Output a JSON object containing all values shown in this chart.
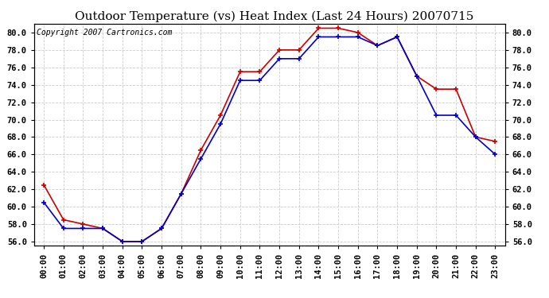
{
  "title": "Outdoor Temperature (vs) Heat Index (Last 24 Hours) 20070715",
  "copyright_text": "Copyright 2007 Cartronics.com",
  "hours": [
    "00:00",
    "01:00",
    "02:00",
    "03:00",
    "04:00",
    "05:00",
    "06:00",
    "07:00",
    "08:00",
    "09:00",
    "10:00",
    "11:00",
    "12:00",
    "13:00",
    "14:00",
    "15:00",
    "16:00",
    "17:00",
    "18:00",
    "19:00",
    "20:00",
    "21:00",
    "22:00",
    "23:00"
  ],
  "temp_blue": [
    60.5,
    57.5,
    57.5,
    57.5,
    56.0,
    56.0,
    57.5,
    61.5,
    65.5,
    69.5,
    74.5,
    74.5,
    77.0,
    77.0,
    79.5,
    79.5,
    79.5,
    78.5,
    79.5,
    75.0,
    70.5,
    70.5,
    68.0,
    66.0
  ],
  "heat_red": [
    62.5,
    58.5,
    58.0,
    57.5,
    56.0,
    56.0,
    57.5,
    61.5,
    66.5,
    70.5,
    75.5,
    75.5,
    78.0,
    78.0,
    80.5,
    80.5,
    80.0,
    78.5,
    79.5,
    75.0,
    73.5,
    73.5,
    68.0,
    67.5
  ],
  "ylim": [
    55.5,
    81.0
  ],
  "yticks": [
    56.0,
    58.0,
    60.0,
    62.0,
    64.0,
    66.0,
    68.0,
    70.0,
    72.0,
    74.0,
    76.0,
    78.0,
    80.0
  ],
  "blue_color": "#0000cc",
  "red_color": "#cc0000",
  "bg_color": "#ffffff",
  "grid_color": "#cccccc",
  "title_fontsize": 11,
  "copyright_fontsize": 7,
  "tick_fontsize": 7.5
}
